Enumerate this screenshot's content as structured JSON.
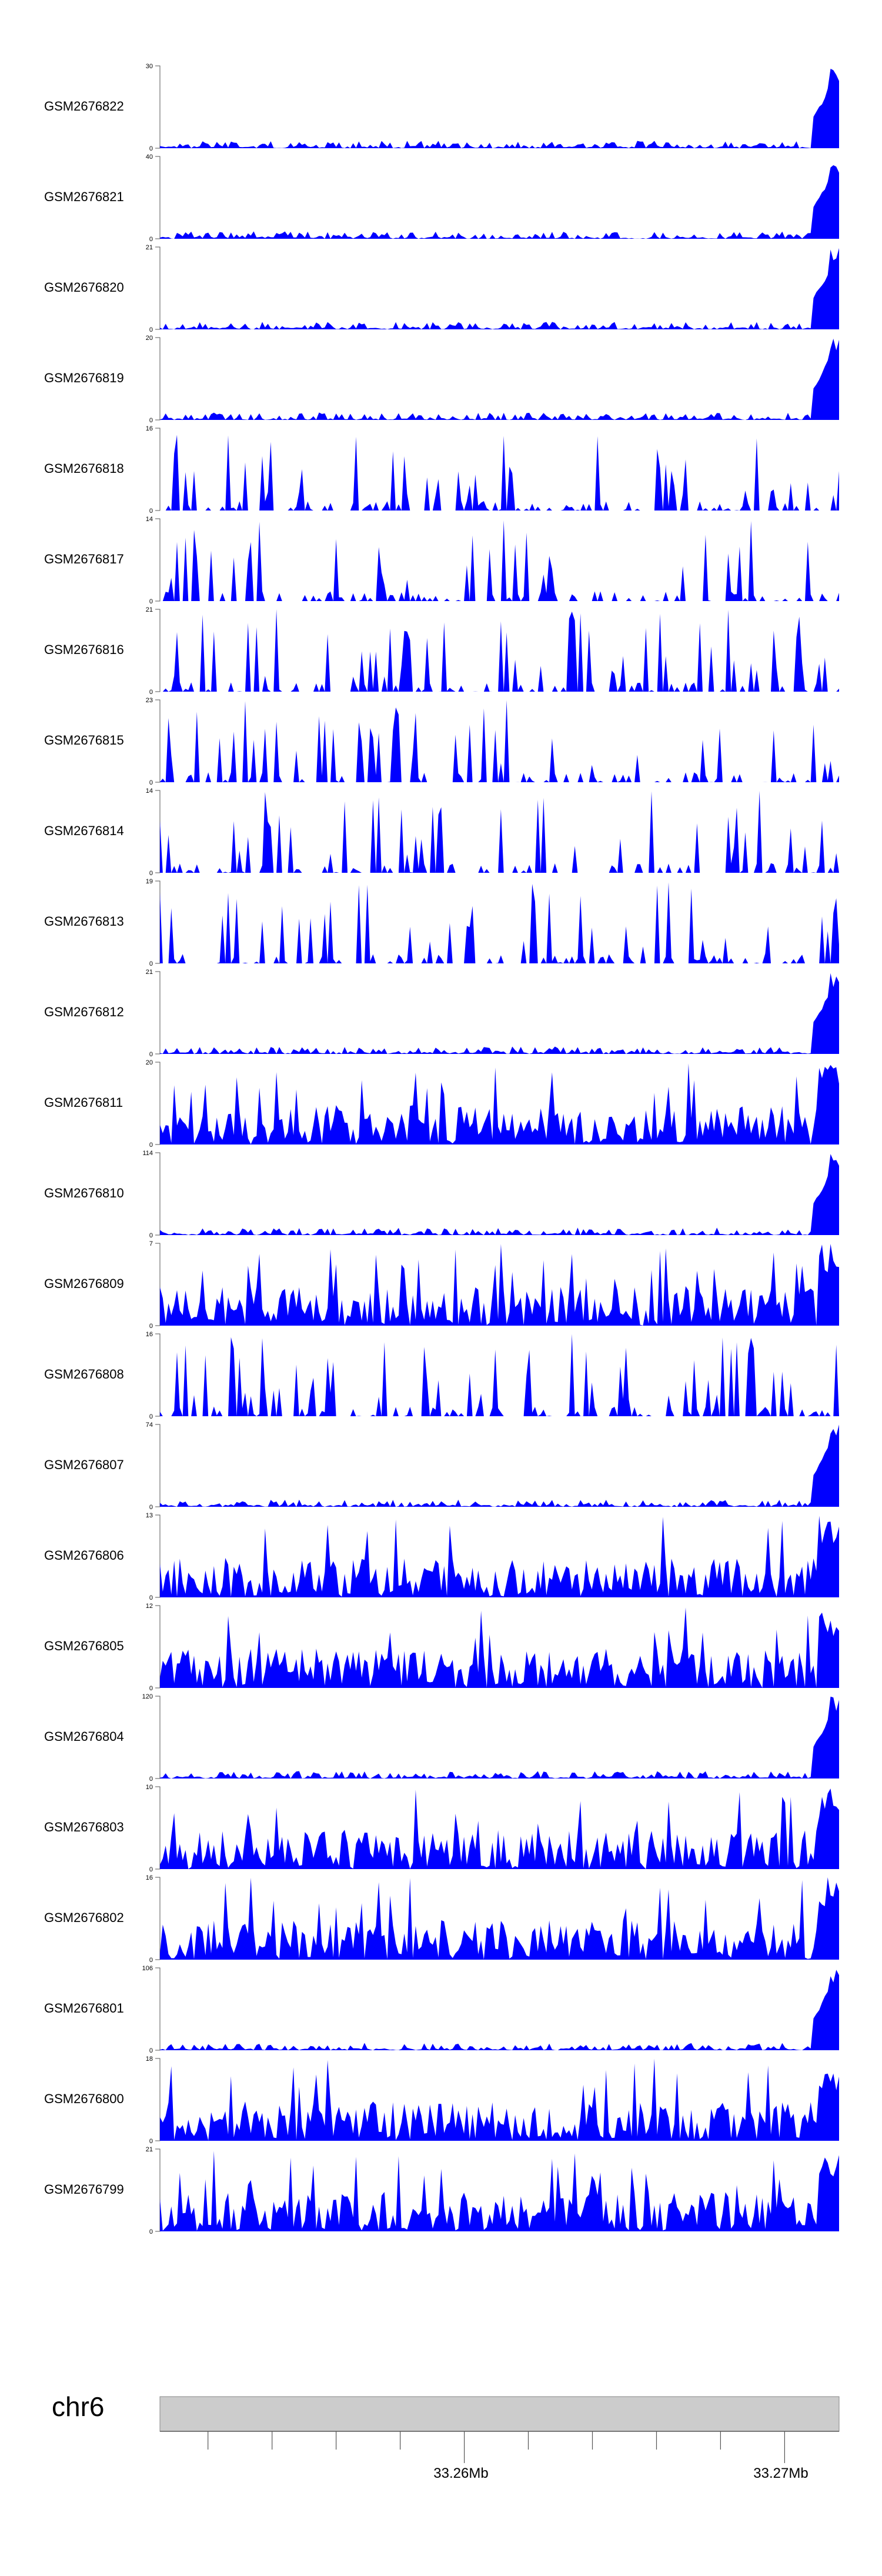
{
  "chart_data": {
    "type": "area",
    "chromosome": "chr6",
    "x_tick_labels": [
      "33.26Mb",
      "33.27Mb"
    ],
    "x_tick_values_mb": [
      33.26,
      33.27
    ],
    "xlim_mb": [
      33.2505,
      33.2717
    ],
    "minor_ticks_mb": [
      33.252,
      33.254,
      33.256,
      33.258,
      33.26,
      33.262,
      33.264,
      33.266,
      33.268,
      33.27
    ],
    "colors": {
      "fill": "#0000ff",
      "axis": "#555555",
      "ideogram": "#cccccc"
    },
    "tracks": [
      {
        "name": "GSM2676822",
        "ymax": 30,
        "ymax_label": "30",
        "ymin_label": "0",
        "profile": "late"
      },
      {
        "name": "GSM2676821",
        "ymax": 40,
        "ymax_label": "40",
        "ymin_label": "0",
        "profile": "late"
      },
      {
        "name": "GSM2676820",
        "ymax": 21,
        "ymax_label": "21",
        "ymin_label": "0",
        "profile": "late"
      },
      {
        "name": "GSM2676819",
        "ymax": 20,
        "ymax_label": "20",
        "ymin_label": "0",
        "profile": "late"
      },
      {
        "name": "GSM2676818",
        "ymax": 16,
        "ymax_label": "16",
        "ymin_label": "0",
        "profile": "spiky"
      },
      {
        "name": "GSM2676817",
        "ymax": 14,
        "ymax_label": "14",
        "ymin_label": "0",
        "profile": "spiky"
      },
      {
        "name": "GSM2676816",
        "ymax": 21,
        "ymax_label": "21",
        "ymin_label": "0",
        "profile": "spiky"
      },
      {
        "name": "GSM2676815",
        "ymax": 23,
        "ymax_label": "23",
        "ymin_label": "0",
        "profile": "spiky"
      },
      {
        "name": "GSM2676814",
        "ymax": 14,
        "ymax_label": "14",
        "ymin_label": "0",
        "profile": "spiky"
      },
      {
        "name": "GSM2676813",
        "ymax": 19,
        "ymax_label": "19",
        "ymin_label": "0",
        "profile": "spiky"
      },
      {
        "name": "GSM2676812",
        "ymax": 21,
        "ymax_label": "21",
        "ymin_label": "0",
        "profile": "late"
      },
      {
        "name": "GSM2676811",
        "ymax": 20,
        "ymax_label": "20",
        "ymin_label": "0",
        "profile": "dense"
      },
      {
        "name": "GSM2676810",
        "ymax": 114,
        "ymax_label": "114",
        "ymin_label": "0",
        "profile": "late"
      },
      {
        "name": "GSM2676809",
        "ymax": 7,
        "ymax_label": "7",
        "ymin_label": "0",
        "profile": "dense"
      },
      {
        "name": "GSM2676808",
        "ymax": 16,
        "ymax_label": "16",
        "ymin_label": "0",
        "profile": "spiky"
      },
      {
        "name": "GSM2676807",
        "ymax": 74,
        "ymax_label": "74",
        "ymin_label": "0",
        "profile": "late"
      },
      {
        "name": "GSM2676806",
        "ymax": 13,
        "ymax_label": "13",
        "ymin_label": "0",
        "profile": "dense"
      },
      {
        "name": "GSM2676805",
        "ymax": 12,
        "ymax_label": "12",
        "ymin_label": "0",
        "profile": "dense"
      },
      {
        "name": "GSM2676804",
        "ymax": 120,
        "ymax_label": "120",
        "ymin_label": "0",
        "profile": "late"
      },
      {
        "name": "GSM2676803",
        "ymax": 10,
        "ymax_label": "10",
        "ymin_label": "0",
        "profile": "dense"
      },
      {
        "name": "GSM2676802",
        "ymax": 16,
        "ymax_label": "16",
        "ymin_label": "0",
        "profile": "dense"
      },
      {
        "name": "GSM2676801",
        "ymax": 106,
        "ymax_label": "106",
        "ymin_label": "0",
        "profile": "late"
      },
      {
        "name": "GSM2676800",
        "ymax": 18,
        "ymax_label": "18",
        "ymin_label": "0",
        "profile": "dense"
      },
      {
        "name": "GSM2676799",
        "ymax": 21,
        "ymax_label": "21",
        "ymin_label": "0",
        "profile": "dense"
      }
    ]
  }
}
